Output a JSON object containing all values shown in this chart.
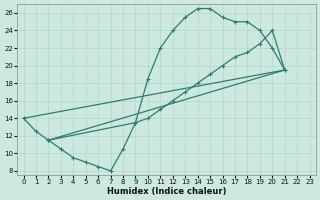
{
  "xlabel": "Humidex (Indice chaleur)",
  "bg_color": "#cce8e0",
  "grid_color": "#b0d8cc",
  "line_color": "#2e7d6e",
  "xlim": [
    -0.5,
    23.5
  ],
  "ylim": [
    7.5,
    27.0
  ],
  "xticks": [
    0,
    1,
    2,
    3,
    4,
    5,
    6,
    7,
    8,
    9,
    10,
    11,
    12,
    13,
    14,
    15,
    16,
    17,
    18,
    19,
    20,
    21,
    22,
    23
  ],
  "yticks": [
    8,
    10,
    12,
    14,
    16,
    18,
    20,
    22,
    24,
    26
  ],
  "line1_x": [
    0,
    1,
    2,
    3,
    4,
    5,
    6,
    7,
    8,
    9,
    10,
    11,
    12,
    13,
    14,
    15,
    16,
    17,
    18,
    19,
    20,
    21
  ],
  "line1_y": [
    14.0,
    12.5,
    11.5,
    10.5,
    9.5,
    9.0,
    8.5,
    8.0,
    10.5,
    13.5,
    18.5,
    22.0,
    24.0,
    25.5,
    26.5,
    26.5,
    25.5,
    25.0,
    25.0,
    24.0,
    22.0,
    19.5
  ],
  "line2_x": [
    0,
    21
  ],
  "line2_y": [
    14.0,
    19.5
  ],
  "line3_x": [
    2,
    9,
    10,
    11,
    12,
    13,
    14,
    15,
    16,
    17,
    18,
    19,
    20,
    21
  ],
  "line3_y": [
    11.5,
    13.5,
    14.0,
    15.0,
    16.0,
    17.0,
    18.0,
    19.0,
    20.0,
    21.0,
    21.5,
    22.5,
    24.0,
    19.5
  ],
  "line4_x": [
    2,
    21
  ],
  "line4_y": [
    11.5,
    19.5
  ]
}
